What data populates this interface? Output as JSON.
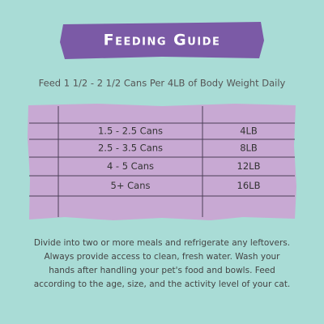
{
  "header": {
    "title": "Feeding Guide"
  },
  "subtitle": "Feed 1 1/2 - 2 1/2 Cans Per 4LB of Body Weight Daily",
  "table": {
    "rows": [
      [
        "1.5 - 2.5 Cans",
        "4LB"
      ],
      [
        "2.5 - 3.5 Cans",
        "8LB"
      ],
      [
        "4 - 5 Cans",
        "12LB"
      ],
      [
        "5+ Cans",
        "16LB"
      ]
    ]
  },
  "notes": [
    "Divide into two or more meals and refrigerate any leftovers.",
    "Always provide access to clean, fresh water. Wash your",
    "hands after handling your pet's food and bowls. Feed",
    "according to the age, size, and the activity level of your cat."
  ]
}
